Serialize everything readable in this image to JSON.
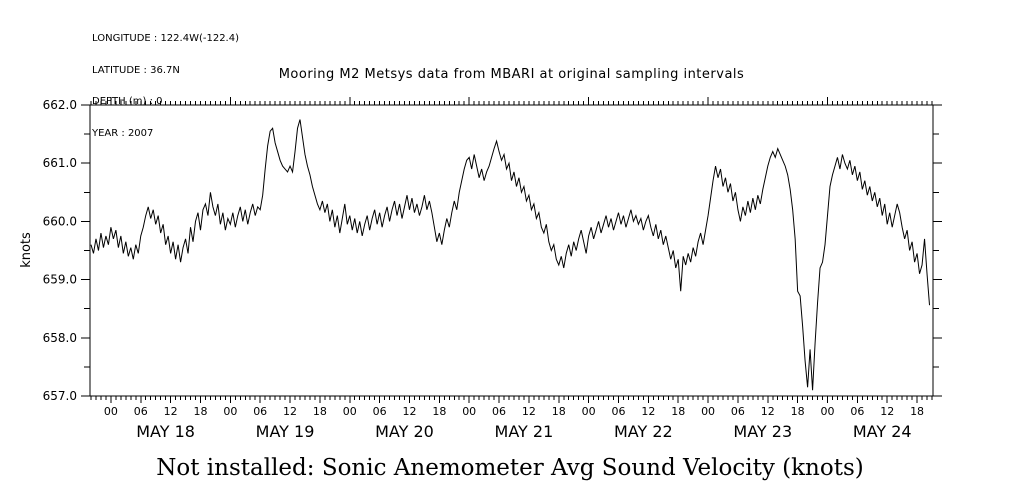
{
  "meta": {
    "longitude": "LONGITUDE : 122.4W(-122.4)",
    "latitude": "LATITUDE : 36.7N",
    "depth": "DEPTH (m) : 0",
    "year": "YEAR : 2007"
  },
  "title": "Mooring M2 Metsys data from MBARI at original sampling intervals",
  "caption": "Not installed: Sonic Anemometer Avg Sound Velocity (knots)",
  "chart_data": {
    "type": "line",
    "title": "Mooring M2 Metsys data from MBARI at original sampling intervals",
    "xlabel": "",
    "ylabel": "knots",
    "ylim": [
      657.0,
      662.0
    ],
    "y_major_tick": 1.0,
    "y_minor_tick": 0.5,
    "y_tick_labels": [
      "657.0",
      "658.0",
      "659.0",
      "660.0",
      "661.0",
      "662.0"
    ],
    "xlim_hours": [
      -4.2,
      165.2
    ],
    "x_unit": "hours since 2007-05-18 00:00",
    "x_minor_tick_hours": 1,
    "x_major_tick_hours": 6,
    "hour_tick_labels": [
      "00",
      "06",
      "12",
      "18"
    ],
    "day_labels": [
      "MAY 18",
      "MAY 19",
      "MAY 20",
      "MAY 21",
      "MAY 22",
      "MAY 23",
      "MAY 24"
    ],
    "grid": false,
    "legend": "none",
    "line_color": "#000000",
    "background_color": "#ffffff",
    "series": [
      {
        "name": "Sonic Anemometer Avg Sound Velocity",
        "units": "knots",
        "x_start_hour": -4.0,
        "x_step_hours": 0.5,
        "values": [
          659.6,
          659.45,
          659.7,
          659.5,
          659.8,
          659.55,
          659.75,
          659.6,
          659.9,
          659.7,
          659.85,
          659.55,
          659.75,
          659.45,
          659.65,
          659.4,
          659.55,
          659.35,
          659.6,
          659.45,
          659.75,
          659.9,
          660.1,
          660.25,
          660.05,
          660.2,
          659.95,
          660.1,
          659.8,
          659.95,
          659.6,
          659.75,
          659.45,
          659.65,
          659.35,
          659.6,
          659.3,
          659.55,
          659.7,
          659.45,
          659.9,
          659.65,
          660.0,
          660.15,
          659.85,
          660.2,
          660.3,
          660.1,
          660.5,
          660.25,
          660.1,
          660.3,
          659.95,
          660.15,
          659.85,
          660.05,
          659.95,
          660.15,
          659.9,
          660.1,
          660.25,
          660.0,
          660.2,
          659.95,
          660.15,
          660.3,
          660.1,
          660.25,
          660.2,
          660.45,
          660.9,
          661.3,
          661.55,
          661.6,
          661.35,
          661.2,
          661.05,
          660.95,
          660.9,
          660.85,
          660.95,
          660.85,
          661.2,
          661.6,
          661.75,
          661.45,
          661.15,
          660.95,
          660.8,
          660.6,
          660.45,
          660.3,
          660.2,
          660.35,
          660.15,
          660.3,
          660.0,
          660.2,
          659.9,
          660.1,
          659.8,
          660.05,
          660.3,
          659.95,
          660.1,
          659.85,
          660.05,
          659.8,
          660.0,
          659.75,
          659.95,
          660.1,
          659.85,
          660.05,
          660.2,
          659.95,
          660.15,
          659.9,
          660.1,
          660.25,
          660.0,
          660.2,
          660.35,
          660.1,
          660.3,
          660.05,
          660.25,
          660.45,
          660.2,
          660.4,
          660.15,
          660.3,
          660.1,
          660.25,
          660.45,
          660.2,
          660.35,
          660.15,
          659.9,
          659.65,
          659.8,
          659.6,
          659.85,
          660.05,
          659.9,
          660.15,
          660.35,
          660.2,
          660.5,
          660.7,
          660.9,
          661.05,
          661.1,
          660.9,
          661.15,
          660.95,
          660.75,
          660.9,
          660.7,
          660.85,
          660.95,
          661.1,
          661.25,
          661.38,
          661.2,
          661.05,
          661.15,
          660.9,
          661.0,
          660.7,
          660.85,
          660.6,
          660.75,
          660.5,
          660.6,
          660.35,
          660.45,
          660.2,
          660.3,
          660.05,
          660.15,
          659.9,
          659.8,
          659.95,
          659.65,
          659.5,
          659.6,
          659.35,
          659.25,
          659.4,
          659.2,
          659.45,
          659.6,
          659.4,
          659.65,
          659.5,
          659.7,
          659.85,
          659.65,
          659.45,
          659.75,
          659.9,
          659.7,
          659.85,
          660.0,
          659.8,
          659.95,
          660.1,
          659.9,
          660.05,
          659.85,
          660.0,
          660.15,
          659.95,
          660.1,
          659.9,
          660.05,
          660.2,
          660.0,
          660.1,
          659.95,
          660.05,
          659.85,
          660.0,
          660.1,
          659.9,
          659.75,
          659.95,
          659.7,
          659.85,
          659.6,
          659.75,
          659.55,
          659.35,
          659.5,
          659.2,
          659.35,
          658.8,
          659.4,
          659.25,
          659.45,
          659.3,
          659.55,
          659.4,
          659.65,
          659.8,
          659.6,
          659.85,
          660.1,
          660.4,
          660.7,
          660.95,
          660.75,
          660.9,
          660.6,
          660.75,
          660.5,
          660.65,
          660.35,
          660.5,
          660.2,
          660.0,
          660.25,
          660.1,
          660.35,
          660.15,
          660.4,
          660.2,
          660.45,
          660.3,
          660.55,
          660.75,
          660.95,
          661.1,
          661.2,
          661.1,
          661.25,
          661.15,
          661.05,
          660.95,
          660.8,
          660.55,
          660.2,
          659.7,
          658.8,
          658.72,
          658.2,
          657.6,
          657.15,
          657.8,
          657.1,
          657.9,
          658.6,
          659.2,
          659.3,
          659.6,
          660.1,
          660.6,
          660.8,
          660.95,
          661.1,
          660.9,
          661.15,
          661.0,
          660.9,
          661.05,
          660.8,
          660.95,
          660.7,
          660.85,
          660.55,
          660.7,
          660.45,
          660.6,
          660.35,
          660.5,
          660.25,
          660.4,
          660.1,
          660.3,
          659.95,
          660.15,
          659.9,
          660.1,
          660.3,
          660.15,
          659.9,
          659.7,
          659.85,
          659.5,
          659.65,
          659.3,
          659.45,
          659.1,
          659.25,
          659.7,
          659.1,
          658.56
        ]
      }
    ]
  }
}
